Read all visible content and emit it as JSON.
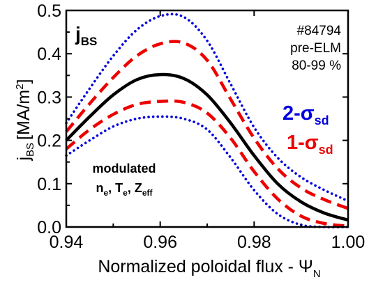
{
  "chart_data": {
    "type": "line",
    "xlabel": "Normalized poloidal flux - Ψ",
    "xlabel_sub": "N",
    "ylabel": "j",
    "ylabel_sub": "BS",
    "ylabel_unit": "[MA/m",
    "ylabel_unit_sup": "2",
    "ylabel_unit_close": "]",
    "xlim": [
      0.94,
      1.0
    ],
    "ylim": [
      0.0,
      0.5
    ],
    "x_ticks": [
      "0.94",
      "0.96",
      "0.98",
      "1.00"
    ],
    "y_ticks": [
      "0.0",
      "0.1",
      "0.2",
      "0.3",
      "0.4",
      "0.5"
    ],
    "grid": false,
    "x": [
      0.94,
      0.945,
      0.95,
      0.955,
      0.96,
      0.965,
      0.97,
      0.975,
      0.98,
      0.985,
      0.99,
      0.995,
      1.0
    ],
    "series": [
      {
        "key": "upper2",
        "style": "dotted",
        "color": "#0000dd",
        "values": [
          0.24,
          0.32,
          0.395,
          0.455,
          0.487,
          0.485,
          0.43,
          0.33,
          0.23,
          0.16,
          0.115,
          0.085,
          0.06
        ]
      },
      {
        "key": "upper1",
        "style": "dashed",
        "color": "#ee0000",
        "values": [
          0.22,
          0.285,
          0.345,
          0.395,
          0.423,
          0.425,
          0.385,
          0.295,
          0.205,
          0.135,
          0.09,
          0.063,
          0.043
        ]
      },
      {
        "key": "mean",
        "style": "solid",
        "color": "#000000",
        "values": [
          0.2,
          0.255,
          0.305,
          0.34,
          0.352,
          0.343,
          0.305,
          0.24,
          0.165,
          0.1,
          0.058,
          0.032,
          0.016
        ]
      },
      {
        "key": "lower1",
        "style": "dashed",
        "color": "#ee0000",
        "values": [
          0.18,
          0.225,
          0.26,
          0.283,
          0.29,
          0.288,
          0.263,
          0.205,
          0.128,
          0.065,
          0.025,
          0.008,
          0.002
        ]
      },
      {
        "key": "lower2",
        "style": "dotted",
        "color": "#0000dd",
        "values": [
          0.165,
          0.2,
          0.232,
          0.25,
          0.255,
          0.25,
          0.225,
          0.16,
          0.085,
          0.03,
          0.005,
          0.0,
          0.0
        ]
      }
    ],
    "annotations": {
      "title_main": "j",
      "title_sub": "BS",
      "shot": "#84794",
      "phase": "pre-ELM",
      "range": "80-99 %",
      "sigma2_main": "2-σ",
      "sigma2_sub": "sd",
      "sigma2_color": "#0000dd",
      "sigma1_main": "1-σ",
      "sigma1_sub": "sd",
      "sigma1_color": "#ee0000",
      "modulated": "modulated",
      "ne_main": "n",
      "ne_sub": "e",
      "te_main": "T",
      "te_sub": "e",
      "zeff_main": "Z",
      "zeff_sub": "eff",
      "sep": ", "
    }
  }
}
